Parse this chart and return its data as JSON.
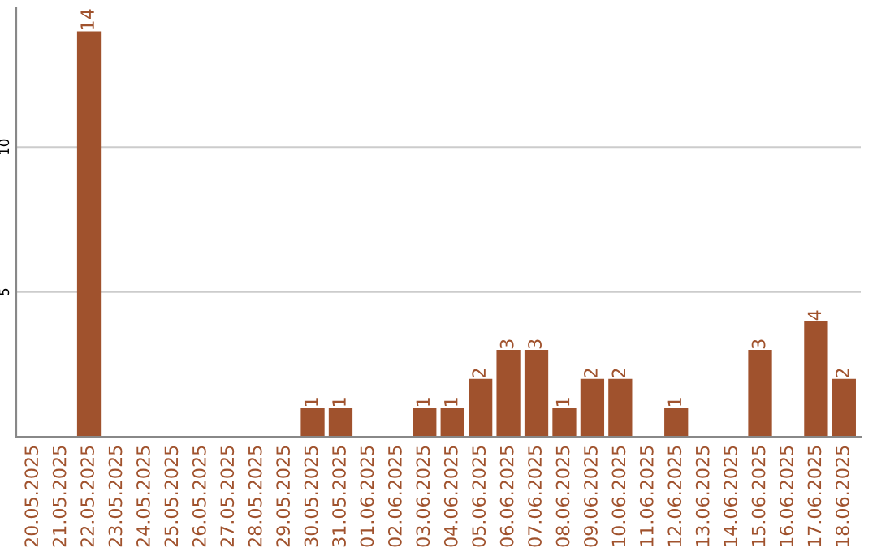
{
  "chart_data": {
    "type": "bar",
    "categories": [
      "20.05.2025",
      "21.05.2025",
      "22.05.2025",
      "23.05.2025",
      "24.05.2025",
      "25.05.2025",
      "26.05.2025",
      "27.05.2025",
      "28.05.2025",
      "29.05.2025",
      "30.05.2025",
      "31.05.2025",
      "01.06.2025",
      "02.06.2025",
      "03.06.2025",
      "04.06.2025",
      "05.06.2025",
      "06.06.2025",
      "07.06.2025",
      "08.06.2025",
      "09.06.2025",
      "10.06.2025",
      "11.06.2025",
      "12.06.2025",
      "13.06.2025",
      "14.06.2025",
      "15.06.2025",
      "16.06.2025",
      "17.06.2025",
      "18.06.2025"
    ],
    "values": [
      0,
      0,
      14,
      0,
      0,
      0,
      0,
      0,
      0,
      0,
      1,
      1,
      0,
      0,
      1,
      1,
      2,
      3,
      3,
      1,
      2,
      2,
      0,
      1,
      0,
      0,
      3,
      0,
      4,
      2
    ],
    "value_labels": [
      null,
      null,
      "14",
      null,
      null,
      null,
      null,
      null,
      null,
      null,
      "1",
      "1",
      null,
      null,
      "1",
      "1",
      "2",
      "3",
      "3",
      "1",
      "2",
      "2",
      null,
      "1",
      null,
      null,
      "3",
      null,
      "4",
      "2"
    ],
    "color": "#a0522d",
    "ylim": [
      0,
      14.8
    ],
    "yticks": [
      5,
      10
    ],
    "grid": "y"
  }
}
